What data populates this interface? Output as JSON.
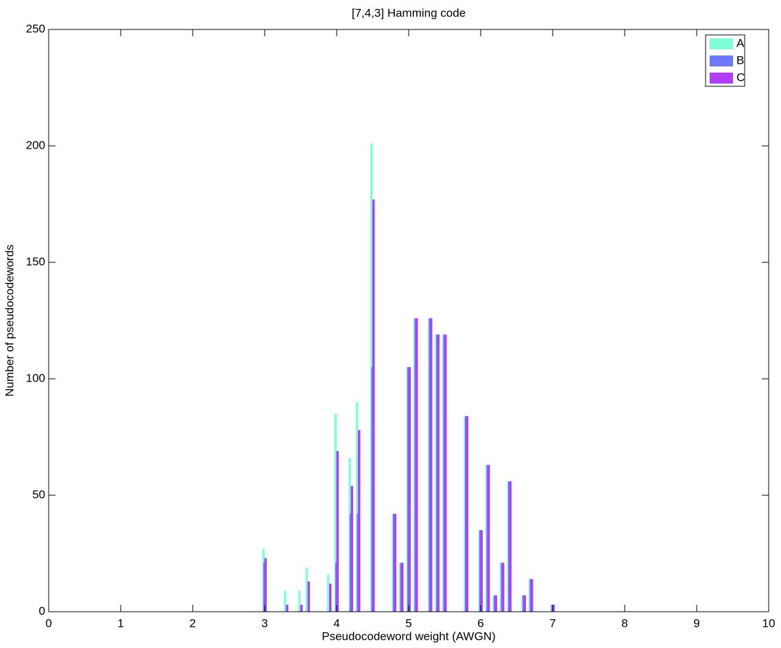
{
  "chart_data": {
    "type": "bar",
    "title": "[7,4,3] Hamming code",
    "x_label": "Pseudocodeword weight (AWGN)",
    "y_label": "Number of pseudocodewords",
    "x": [
      3.0,
      3.3,
      3.5,
      3.6,
      3.9,
      4.0,
      4.2,
      4.3,
      4.5,
      4.8,
      4.9,
      5.0,
      5.1,
      5.3,
      5.4,
      5.5,
      5.8,
      6.0,
      6.1,
      6.2,
      6.3,
      6.4,
      6.6,
      6.7,
      7.0
    ],
    "series": [
      {
        "name": "A",
        "color": "#7fffd8",
        "values": [
          27,
          9,
          9,
          19,
          16,
          85,
          66,
          90,
          201,
          42,
          21,
          105,
          126,
          126,
          119,
          119,
          84,
          35,
          63,
          7,
          21,
          56,
          7,
          14,
          3
        ]
      },
      {
        "name": "B",
        "color": "#6b78ff",
        "values": [
          21,
          0,
          0,
          0,
          0,
          21,
          42,
          42,
          105,
          42,
          21,
          105,
          126,
          126,
          119,
          119,
          84,
          35,
          63,
          7,
          21,
          56,
          7,
          14,
          3
        ]
      },
      {
        "name": "C",
        "color": "#b43cff",
        "values": [
          23,
          3,
          3,
          13,
          12,
          69,
          54,
          78,
          177,
          42,
          21,
          105,
          126,
          126,
          119,
          119,
          84,
          35,
          63,
          7,
          21,
          56,
          7,
          14,
          3
        ]
      }
    ],
    "xlim": [
      0,
      10
    ],
    "xticks": [
      0,
      1,
      2,
      3,
      4,
      5,
      6,
      7,
      8,
      9,
      10
    ],
    "ylim": [
      0,
      250
    ],
    "yticks": [
      0,
      50,
      100,
      150,
      200,
      250
    ],
    "legend": "top-right"
  }
}
